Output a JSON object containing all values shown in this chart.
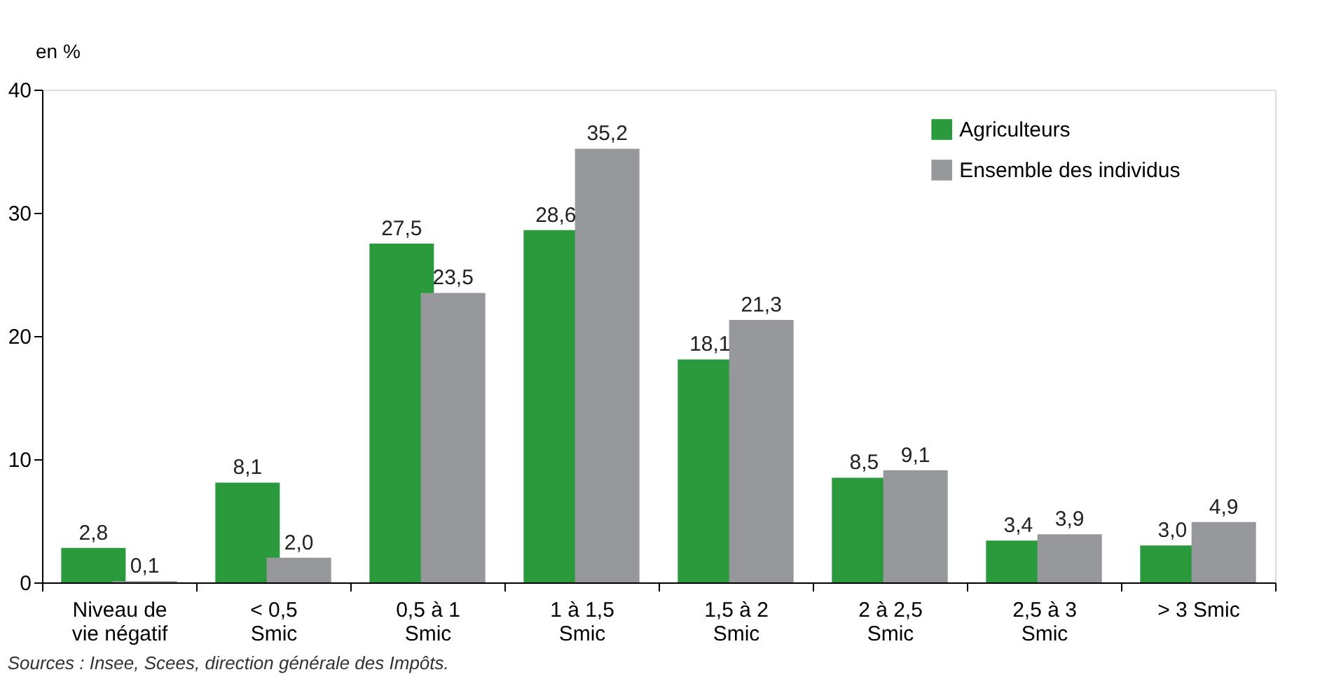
{
  "chart_data": {
    "type": "bar",
    "ylabel": "en %",
    "categories": [
      "Niveau de\nvie négatif",
      "< 0,5\nSmic",
      "0,5 à 1\nSmic",
      "1 à 1,5\nSmic",
      "1,5 à 2\nSmic",
      "2 à 2,5\nSmic",
      "2,5 à 3\nSmic",
      "> 3 Smic"
    ],
    "series": [
      {
        "name": "Agriculteurs",
        "color": "#2a9a3c",
        "values": [
          2.8,
          8.1,
          27.5,
          28.6,
          18.1,
          8.5,
          3.4,
          3.0
        ],
        "value_labels": [
          "2,8",
          "8,1",
          "27,5",
          "28,6",
          "18,1",
          "8,5",
          "3,4",
          "3,0"
        ]
      },
      {
        "name": "Ensemble des individus",
        "color": "#97989c",
        "values": [
          0.1,
          2.0,
          23.5,
          35.2,
          21.3,
          9.1,
          3.9,
          4.9
        ],
        "value_labels": [
          "0,1",
          "2,0",
          "23,5",
          "35,2",
          "21,3",
          "9,1",
          "3,9",
          "4,9"
        ]
      }
    ],
    "ylim": [
      0,
      40
    ],
    "yticks": [
      0,
      10,
      20,
      30,
      40
    ],
    "grid": false,
    "legend": "top right",
    "annotations": [
      "Sources : Insee, Scees, direction générale des Impôts."
    ]
  }
}
